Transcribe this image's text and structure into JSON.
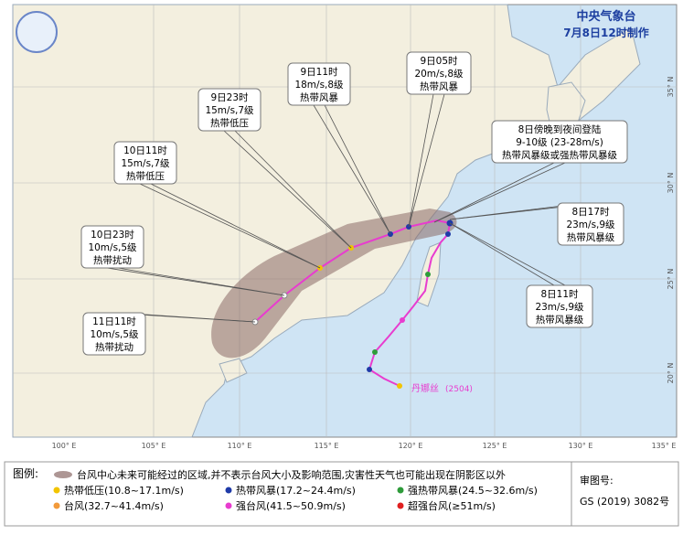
{
  "header": {
    "agency": "中央气象台",
    "issued": "7月8日12时制作"
  },
  "typhoon": {
    "name": "丹娜丝",
    "code": "(2504)"
  },
  "callouts": [
    {
      "lines": [
        "9日05时",
        "20m/s,8级",
        "热带风暴"
      ]
    },
    {
      "lines": [
        "9日11时",
        "18m/s,8级",
        "热带风暴"
      ]
    },
    {
      "lines": [
        "9日23时",
        "15m/s,7级",
        "热带低压"
      ]
    },
    {
      "lines": [
        "10日11时",
        "15m/s,7级",
        "热带低压"
      ]
    },
    {
      "lines": [
        "10日23时",
        "10m/s,5级",
        "热带扰动"
      ]
    },
    {
      "lines": [
        "11日11时",
        "10m/s,5级",
        "热带扰动"
      ]
    },
    {
      "lines": [
        "8日傍晚到夜间登陆",
        "9-10级 (23-28m/s)",
        "热带风暴级或强热带风暴级"
      ]
    },
    {
      "lines": [
        "8日17时",
        "23m/s,9级",
        "热带风暴级"
      ]
    },
    {
      "lines": [
        "8日11时",
        "23m/s,9级",
        "热带风暴级"
      ]
    }
  ],
  "lon_labels": [
    "100° E",
    "105° E",
    "110° E",
    "115° E",
    "120° E",
    "125° E",
    "130° E",
    "135° E"
  ],
  "lat_labels": [
    "35° N",
    "30° N",
    "25° N",
    "20° N"
  ],
  "legend": {
    "title": "图例:",
    "cone": "台风中心未来可能经过的区域,并不表示台风大小及影响范围,灾害性天气也可能出现在阴影区以外",
    "items": [
      {
        "text": "热带低压(10.8~17.1m/s)",
        "color": "#f2c400"
      },
      {
        "text": "热带风暴(17.2~24.4m/s)",
        "color": "#1f3aa8"
      },
      {
        "text": "强热带风暴(24.5~32.6m/s)",
        "color": "#2e9b3a"
      },
      {
        "text": "台风(32.7~41.4m/s)",
        "color": "#f29a3a"
      },
      {
        "text": "强台风(41.5~50.9m/s)",
        "color": "#e83ccf"
      },
      {
        "text": "超强台风(≥51m/s)",
        "color": "#e02020"
      }
    ]
  },
  "approval": {
    "label": "审图号:",
    "number": "GS (2019) 3082号"
  }
}
